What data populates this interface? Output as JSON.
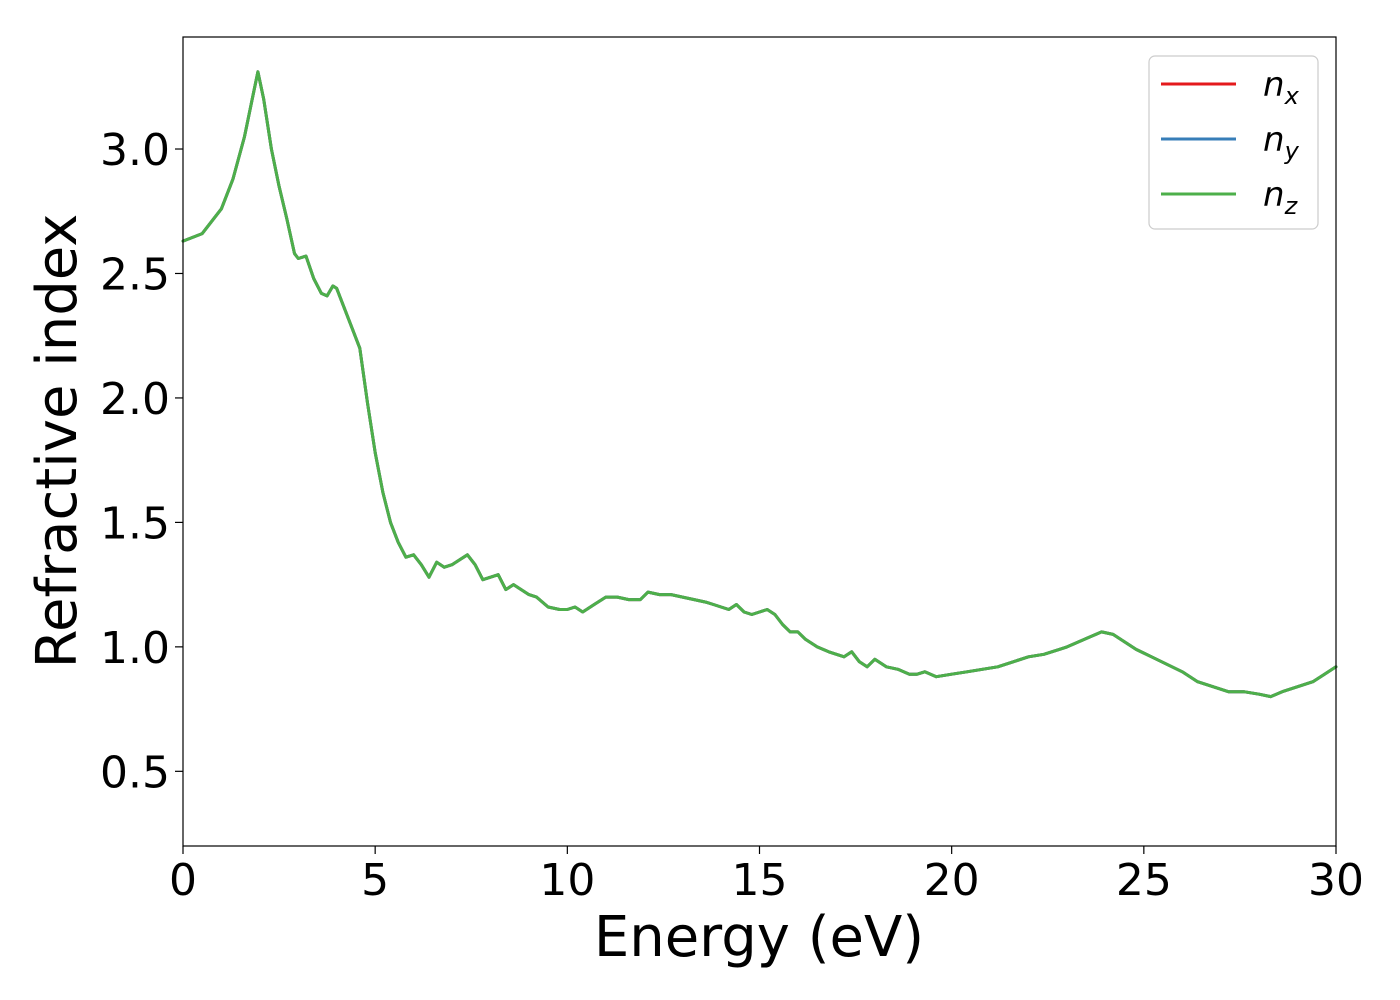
{
  "chart_data": {
    "type": "line",
    "xlabel": "Energy (eV)",
    "ylabel": "Refractive index",
    "xlim": [
      0,
      30
    ],
    "ylim": [
      0.2,
      3.45
    ],
    "xticks": [
      0,
      5,
      10,
      15,
      20,
      25,
      30
    ],
    "xtick_labels": [
      "0",
      "5",
      "10",
      "15",
      "20",
      "25",
      "30"
    ],
    "yticks": [
      0.5,
      1.0,
      1.5,
      2.0,
      2.5,
      3.0
    ],
    "ytick_labels": [
      "0.5",
      "1.0",
      "1.5",
      "2.0",
      "2.5",
      "3.0"
    ],
    "grid": false,
    "legend_position": "top-right",
    "x": [
      0,
      0.5,
      1.0,
      1.3,
      1.6,
      1.8,
      1.95,
      2.1,
      2.3,
      2.5,
      2.7,
      2.9,
      3.0,
      3.2,
      3.4,
      3.6,
      3.75,
      3.9,
      4.0,
      4.2,
      4.4,
      4.6,
      4.8,
      5.0,
      5.2,
      5.4,
      5.6,
      5.8,
      6.0,
      6.2,
      6.4,
      6.6,
      6.8,
      7.0,
      7.2,
      7.4,
      7.6,
      7.8,
      8.0,
      8.2,
      8.4,
      8.6,
      8.8,
      9.0,
      9.2,
      9.5,
      9.8,
      10.0,
      10.2,
      10.4,
      10.7,
      11.0,
      11.3,
      11.6,
      11.9,
      12.1,
      12.4,
      12.7,
      13.0,
      13.3,
      13.6,
      13.8,
      14.0,
      14.2,
      14.4,
      14.6,
      14.8,
      15.0,
      15.2,
      15.4,
      15.6,
      15.8,
      16.0,
      16.2,
      16.5,
      16.8,
      17.0,
      17.2,
      17.4,
      17.6,
      17.8,
      18.0,
      18.3,
      18.6,
      18.9,
      19.1,
      19.3,
      19.6,
      20.0,
      20.4,
      20.8,
      21.2,
      21.6,
      22.0,
      22.4,
      22.8,
      23.0,
      23.3,
      23.6,
      23.9,
      24.2,
      24.5,
      24.8,
      25.2,
      25.6,
      26.0,
      26.4,
      26.8,
      27.2,
      27.6,
      28.0,
      28.3,
      28.6,
      29.0,
      29.4,
      29.7,
      30.0
    ],
    "series": [
      {
        "name": "n",
        "subscript": "x",
        "color": "#e41a1c",
        "values": [
          2.63,
          2.66,
          2.76,
          2.88,
          3.05,
          3.2,
          3.31,
          3.2,
          3.0,
          2.85,
          2.72,
          2.58,
          2.56,
          2.57,
          2.48,
          2.42,
          2.41,
          2.45,
          2.44,
          2.36,
          2.28,
          2.2,
          1.98,
          1.78,
          1.62,
          1.5,
          1.42,
          1.36,
          1.37,
          1.33,
          1.28,
          1.34,
          1.32,
          1.33,
          1.35,
          1.37,
          1.33,
          1.27,
          1.28,
          1.29,
          1.23,
          1.25,
          1.23,
          1.21,
          1.2,
          1.16,
          1.15,
          1.15,
          1.16,
          1.14,
          1.17,
          1.2,
          1.2,
          1.19,
          1.19,
          1.22,
          1.21,
          1.21,
          1.2,
          1.19,
          1.18,
          1.17,
          1.16,
          1.15,
          1.17,
          1.14,
          1.13,
          1.14,
          1.15,
          1.13,
          1.09,
          1.06,
          1.06,
          1.03,
          1.0,
          0.98,
          0.97,
          0.96,
          0.98,
          0.94,
          0.92,
          0.95,
          0.92,
          0.91,
          0.89,
          0.89,
          0.9,
          0.88,
          0.89,
          0.9,
          0.91,
          0.92,
          0.94,
          0.96,
          0.97,
          0.99,
          1.0,
          1.02,
          1.04,
          1.06,
          1.05,
          1.02,
          0.99,
          0.96,
          0.93,
          0.9,
          0.86,
          0.84,
          0.82,
          0.82,
          0.81,
          0.8,
          0.82,
          0.84,
          0.86,
          0.89,
          0.92
        ]
      },
      {
        "name": "n",
        "subscript": "y",
        "color": "#377eb8",
        "values": [
          2.63,
          2.66,
          2.76,
          2.88,
          3.05,
          3.2,
          3.31,
          3.2,
          3.0,
          2.85,
          2.72,
          2.58,
          2.56,
          2.57,
          2.48,
          2.42,
          2.41,
          2.45,
          2.44,
          2.36,
          2.28,
          2.2,
          1.98,
          1.78,
          1.62,
          1.5,
          1.42,
          1.36,
          1.37,
          1.33,
          1.28,
          1.34,
          1.32,
          1.33,
          1.35,
          1.37,
          1.33,
          1.27,
          1.28,
          1.29,
          1.23,
          1.25,
          1.23,
          1.21,
          1.2,
          1.16,
          1.15,
          1.15,
          1.16,
          1.14,
          1.17,
          1.2,
          1.2,
          1.19,
          1.19,
          1.22,
          1.21,
          1.21,
          1.2,
          1.19,
          1.18,
          1.17,
          1.16,
          1.15,
          1.17,
          1.14,
          1.13,
          1.14,
          1.15,
          1.13,
          1.09,
          1.06,
          1.06,
          1.03,
          1.0,
          0.98,
          0.97,
          0.96,
          0.98,
          0.94,
          0.92,
          0.95,
          0.92,
          0.91,
          0.89,
          0.89,
          0.9,
          0.88,
          0.89,
          0.9,
          0.91,
          0.92,
          0.94,
          0.96,
          0.97,
          0.99,
          1.0,
          1.02,
          1.04,
          1.06,
          1.05,
          1.02,
          0.99,
          0.96,
          0.93,
          0.9,
          0.86,
          0.84,
          0.82,
          0.82,
          0.81,
          0.8,
          0.82,
          0.84,
          0.86,
          0.89,
          0.92
        ]
      },
      {
        "name": "n",
        "subscript": "z",
        "color": "#4daf4a",
        "values": [
          2.63,
          2.66,
          2.76,
          2.88,
          3.05,
          3.2,
          3.31,
          3.2,
          3.0,
          2.85,
          2.72,
          2.58,
          2.56,
          2.57,
          2.48,
          2.42,
          2.41,
          2.45,
          2.44,
          2.36,
          2.28,
          2.2,
          1.98,
          1.78,
          1.62,
          1.5,
          1.42,
          1.36,
          1.37,
          1.33,
          1.28,
          1.34,
          1.32,
          1.33,
          1.35,
          1.37,
          1.33,
          1.27,
          1.28,
          1.29,
          1.23,
          1.25,
          1.23,
          1.21,
          1.2,
          1.16,
          1.15,
          1.15,
          1.16,
          1.14,
          1.17,
          1.2,
          1.2,
          1.19,
          1.19,
          1.22,
          1.21,
          1.21,
          1.2,
          1.19,
          1.18,
          1.17,
          1.16,
          1.15,
          1.17,
          1.14,
          1.13,
          1.14,
          1.15,
          1.13,
          1.09,
          1.06,
          1.06,
          1.03,
          1.0,
          0.98,
          0.97,
          0.96,
          0.98,
          0.94,
          0.92,
          0.95,
          0.92,
          0.91,
          0.89,
          0.89,
          0.9,
          0.88,
          0.89,
          0.9,
          0.91,
          0.92,
          0.94,
          0.96,
          0.97,
          0.99,
          1.0,
          1.02,
          1.04,
          1.06,
          1.05,
          1.02,
          0.99,
          0.96,
          0.93,
          0.9,
          0.86,
          0.84,
          0.82,
          0.82,
          0.81,
          0.8,
          0.82,
          0.84,
          0.86,
          0.89,
          0.92
        ]
      }
    ]
  }
}
